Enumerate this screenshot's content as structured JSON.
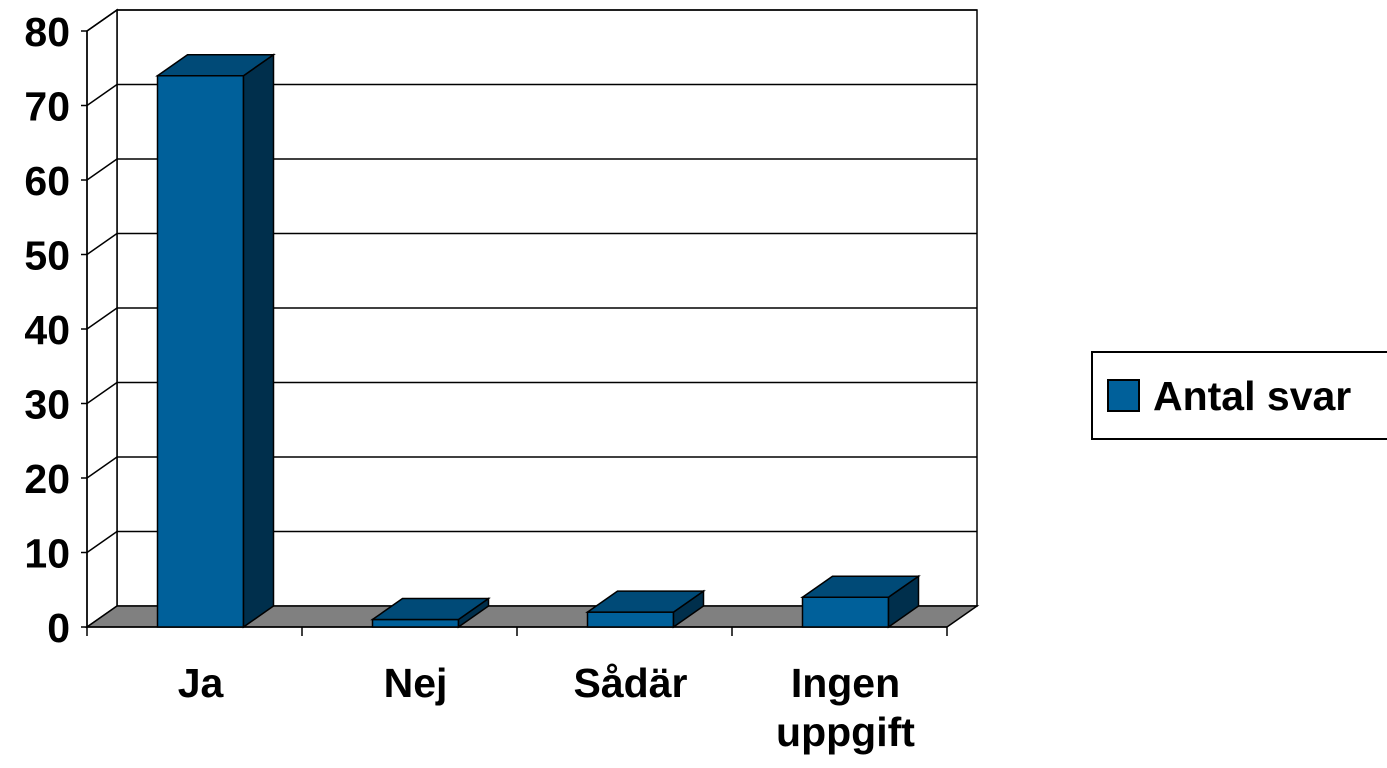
{
  "chart_data": {
    "type": "bar",
    "style": "3d-column",
    "categories": [
      "Ja",
      "Nej",
      "Sådär",
      "Ingen uppgift"
    ],
    "category_lines": [
      [
        "Ja"
      ],
      [
        "Nej"
      ],
      [
        "Sådär"
      ],
      [
        "Ingen",
        "uppgift"
      ]
    ],
    "series": [
      {
        "name": "Antal svar",
        "values": [
          74,
          1,
          2,
          4
        ]
      }
    ],
    "ylim": [
      0,
      80
    ],
    "yticks": [
      0,
      10,
      20,
      30,
      40,
      50,
      60,
      70,
      80
    ],
    "grid": true,
    "legend": "right",
    "colors": {
      "bar_front": "#00609A",
      "bar_top": "#004A77",
      "bar_side": "#002F4C",
      "floor": "#808080",
      "grid": "#000000",
      "legend_swatch": "#00609A"
    }
  }
}
